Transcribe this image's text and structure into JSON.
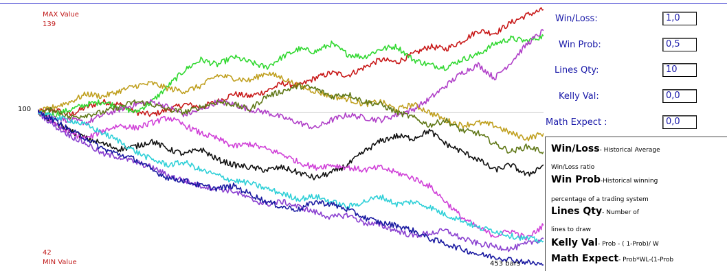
{
  "chart": {
    "max_label": "MAX Value",
    "max_value": "139",
    "min_label": "MIN Value",
    "min_value": "42",
    "base_value": "100",
    "bars_label": "453 bars"
  },
  "params": {
    "win_loss_label": "Win/Loss:",
    "win_loss_value": "1,0",
    "win_prob_label": "Win Prob:",
    "win_prob_value": "0,5",
    "lines_qty_label": "Lines Qty:",
    "lines_qty_value": "10",
    "kelly_label": "Kelly Val:",
    "kelly_value": "0,0",
    "math_expect_label": "Math Expect :",
    "math_expect_value": "0,0"
  },
  "help": [
    {
      "term": "Win/Loss",
      "desc": "- Historical Average"
    },
    {
      "term": "",
      "desc": "Win/Loss ratio"
    },
    {
      "term": "Win Prob",
      "desc": "-Historical winning"
    },
    {
      "term": "",
      "desc": "percentage of a trading system"
    },
    {
      "term": "Lines Qty",
      "desc": "- Number of"
    },
    {
      "term": "",
      "desc": "lines to draw"
    },
    {
      "term": "Kelly Val",
      "desc": "- Prob - ( 1-Prob)/ W"
    },
    {
      "term": "Math Expect",
      "desc": "- Prob*WL-(1-Prob"
    }
  ],
  "chart_data": {
    "type": "line",
    "title": "",
    "xlabel": "",
    "ylabel": "",
    "x_range": [
      0,
      453
    ],
    "ylim": [
      42,
      139
    ],
    "baseline": 100,
    "grid": false,
    "series": [
      {
        "color": "#c81818",
        "values": [
          100,
          101,
          99,
          102,
          104,
          103,
          100,
          99,
          101,
          103,
          102,
          104,
          107,
          106,
          108,
          111,
          110,
          113,
          115,
          114,
          117,
          120,
          119,
          122,
          125,
          124,
          127,
          131,
          130,
          134,
          137,
          139
        ]
      },
      {
        "color": "#30d830",
        "values": [
          100,
          99,
          101,
          103,
          104,
          102,
          100,
          104,
          110,
          116,
          120,
          118,
          121,
          119,
          117,
          121,
          124,
          123,
          126,
          122,
          121,
          124,
          125,
          120,
          118,
          117,
          120,
          122,
          126,
          128,
          127,
          129
        ]
      },
      {
        "color": "#b040c8",
        "values": [
          100,
          98,
          97,
          96,
          99,
          101,
          103,
          104,
          102,
          99,
          101,
          104,
          103,
          101,
          100,
          98,
          96,
          94,
          97,
          99,
          98,
          97,
          99,
          101,
          105,
          110,
          115,
          118,
          113,
          119,
          126,
          131
        ]
      },
      {
        "color": "#c0a020",
        "values": [
          100,
          102,
          104,
          107,
          106,
          108,
          110,
          111,
          109,
          108,
          110,
          114,
          113,
          112,
          115,
          113,
          110,
          108,
          106,
          105,
          103,
          104,
          101,
          103,
          100,
          97,
          95,
          96,
          95,
          92,
          90,
          92
        ]
      },
      {
        "color": "#607818",
        "values": [
          100,
          101,
          98,
          99,
          100,
          102,
          104,
          103,
          101,
          100,
          102,
          104,
          103,
          101,
          106,
          108,
          110,
          109,
          106,
          107,
          104,
          103,
          100,
          98,
          95,
          97,
          93,
          92,
          88,
          85,
          87,
          85
        ]
      },
      {
        "color": "#101010",
        "values": [
          100,
          96,
          93,
          90,
          88,
          86,
          87,
          89,
          86,
          84,
          86,
          82,
          80,
          79,
          78,
          79,
          77,
          75,
          77,
          80,
          85,
          89,
          91,
          90,
          93,
          88,
          85,
          82,
          78,
          80,
          76,
          80
        ]
      },
      {
        "color": "#d040d8",
        "values": [
          100,
          96,
          92,
          90,
          93,
          95,
          94,
          96,
          98,
          95,
          92,
          90,
          87,
          88,
          86,
          84,
          81,
          79,
          80,
          79,
          78,
          79,
          77,
          75,
          72,
          66,
          60,
          56,
          53,
          55,
          52,
          57
        ]
      },
      {
        "color": "#8a40d0",
        "values": [
          100,
          95,
          91,
          88,
          84,
          83,
          81,
          79,
          76,
          74,
          72,
          71,
          70,
          67,
          65,
          66,
          64,
          62,
          60,
          61,
          58,
          57,
          55,
          53,
          54,
          55,
          52,
          50,
          49,
          48,
          50,
          52
        ]
      },
      {
        "color": "#30d0d8",
        "values": [
          100,
          98,
          97,
          95,
          92,
          89,
          85,
          82,
          80,
          81,
          78,
          76,
          74,
          73,
          71,
          69,
          67,
          68,
          66,
          64,
          66,
          68,
          65,
          66,
          64,
          61,
          59,
          56,
          55,
          53,
          52,
          51
        ]
      },
      {
        "color": "#1818a0",
        "values": [
          100,
          97,
          93,
          90,
          86,
          84,
          82,
          78,
          75,
          74,
          72,
          71,
          72,
          69,
          66,
          64,
          63,
          66,
          65,
          63,
          60,
          58,
          57,
          55,
          52,
          50,
          48,
          46,
          45,
          44,
          43,
          42
        ]
      }
    ]
  }
}
